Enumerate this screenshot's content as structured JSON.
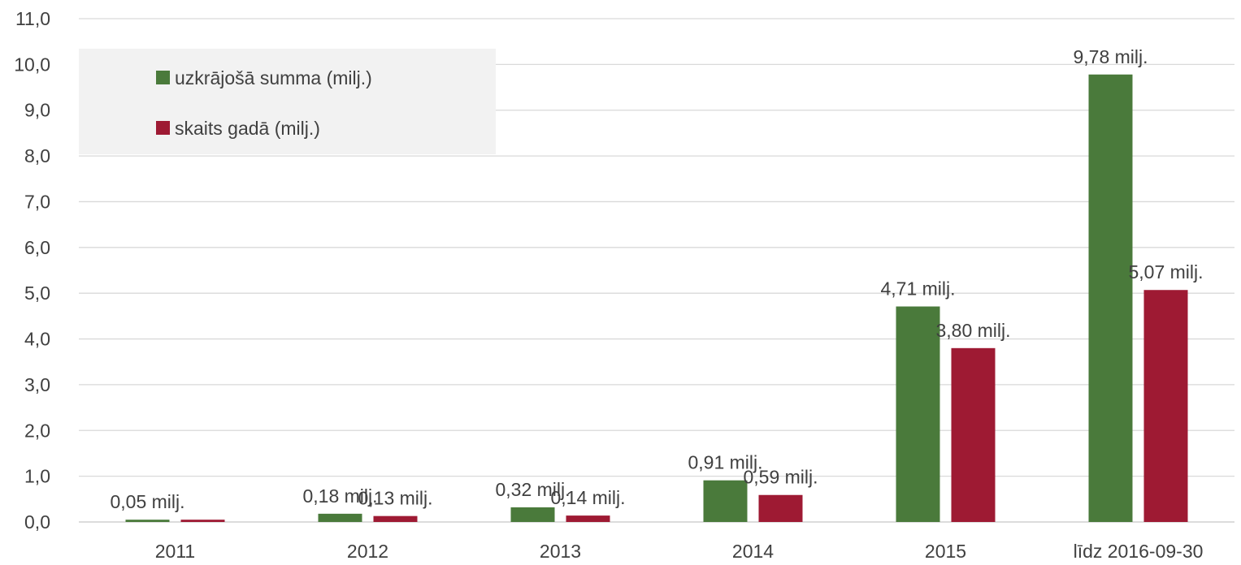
{
  "chart_data": {
    "type": "bar",
    "title": "",
    "xlabel": "",
    "ylabel": "",
    "categories": [
      "2011",
      "2012",
      "2013",
      "2014",
      "2015",
      "līdz 2016-09-30"
    ],
    "ylim": [
      0,
      11
    ],
    "yticks": [
      "0,0",
      "1,0",
      "2,0",
      "3,0",
      "4,0",
      "5,0",
      "6,0",
      "7,0",
      "8,0",
      "9,0",
      "10,0",
      "11,0"
    ],
    "grid": true,
    "legend_position": "top-left",
    "series": [
      {
        "name": "uzkrājošā summa (milj.)",
        "color": "#4a7a3b",
        "values": [
          0.05,
          0.18,
          0.32,
          0.91,
          4.71,
          9.78
        ],
        "labels": [
          "0,05 milj.",
          "0,18 milj.",
          "0,32 milj.",
          "0,91 milj.",
          "4,71 milj.",
          "9,78 milj."
        ]
      },
      {
        "name": "skaits gadā (milj.)",
        "color": "#9e1a33",
        "values": [
          0.05,
          0.13,
          0.14,
          0.59,
          3.8,
          5.07
        ],
        "labels": [
          "",
          "0,13 milj.",
          "0,14 milj.",
          "0,59 milj.",
          "3,80 milj.",
          "5,07 milj."
        ]
      }
    ]
  }
}
